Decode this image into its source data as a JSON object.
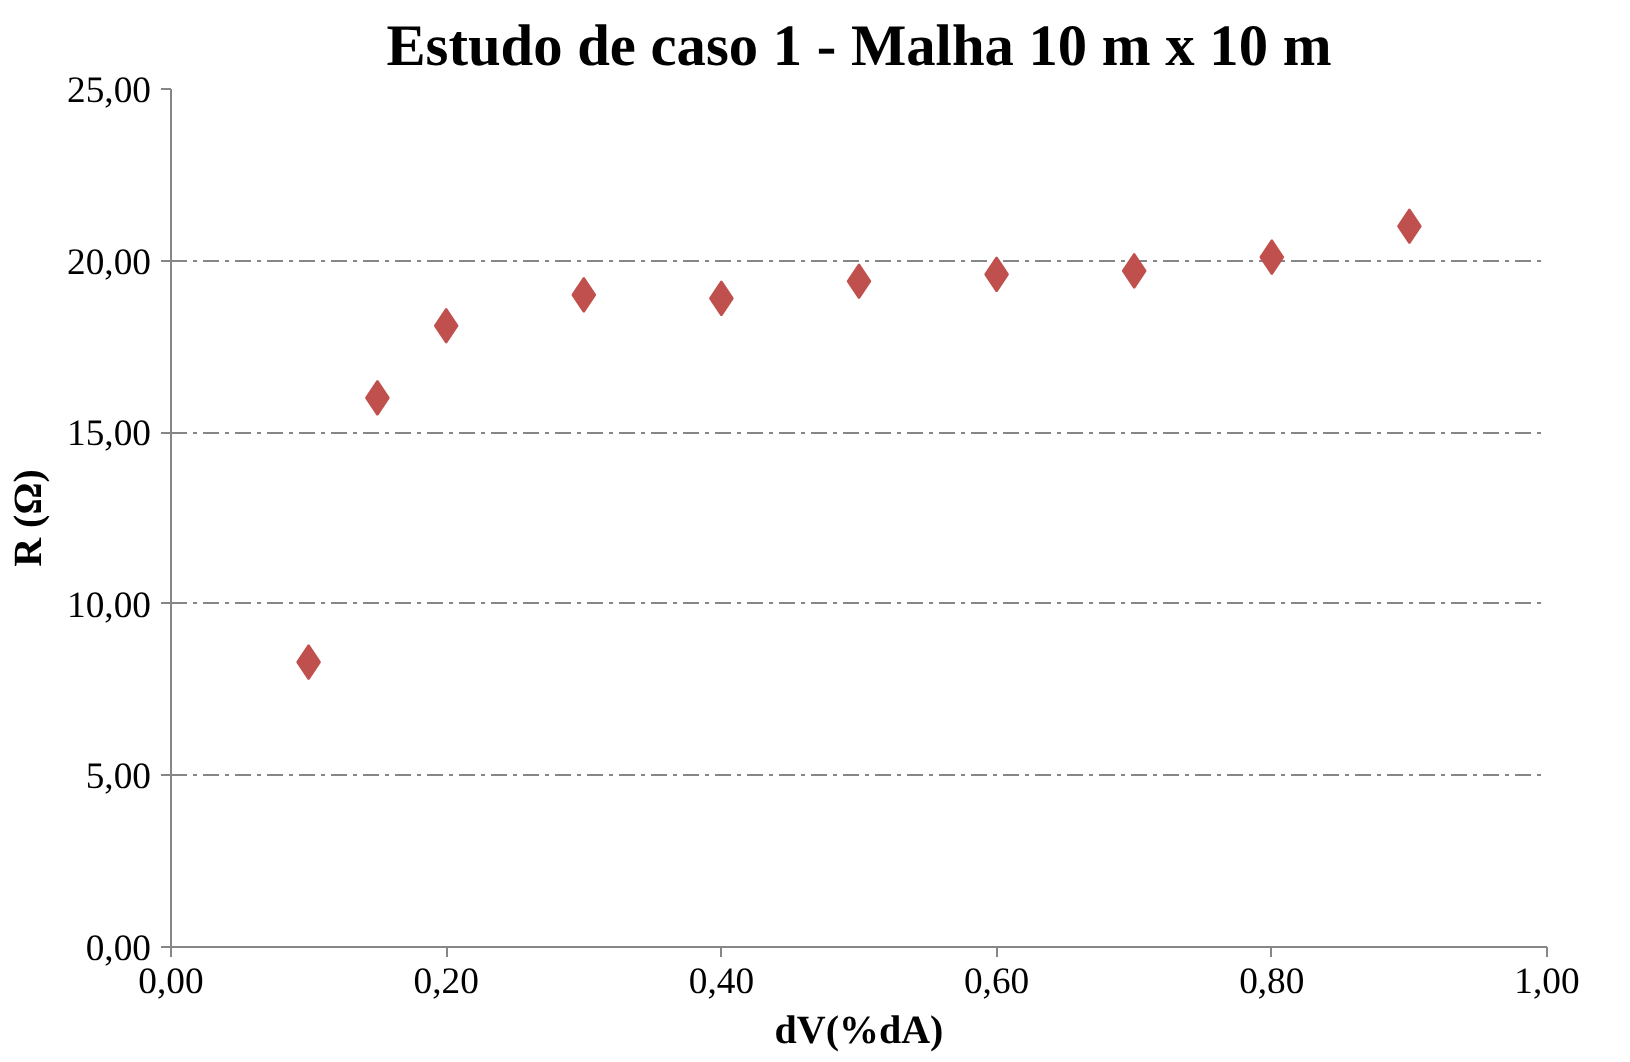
{
  "chart_data": {
    "type": "scatter",
    "title": "Estudo de caso 1 - Malha 10 m x 10 m",
    "xlabel": "dV(%dA)",
    "ylabel": "R (Ω)",
    "x": [
      0.1,
      0.15,
      0.2,
      0.3,
      0.4,
      0.5,
      0.6,
      0.7,
      0.8,
      0.9
    ],
    "series": [
      {
        "color": "#c0504d",
        "values": [
          8.3,
          16.0,
          18.1,
          19.0,
          18.9,
          19.4,
          19.6,
          19.7,
          20.1,
          21.0
        ]
      }
    ],
    "xlim": [
      0,
      1
    ],
    "ylim": [
      0,
      25
    ],
    "xticks": [
      {
        "value": 0,
        "label": "0,00"
      },
      {
        "value": 0.2,
        "label": "0,20"
      },
      {
        "value": 0.4,
        "label": "0,40"
      },
      {
        "value": 0.6,
        "label": "0,60"
      },
      {
        "value": 0.8,
        "label": "0,80"
      },
      {
        "value": 1,
        "label": "1,00"
      }
    ],
    "yticks": [
      {
        "value": 0,
        "label": "0,00"
      },
      {
        "value": 5,
        "label": "5,00"
      },
      {
        "value": 10,
        "label": "10,00"
      },
      {
        "value": 15,
        "label": "15,00"
      },
      {
        "value": 20,
        "label": "20,00"
      },
      {
        "value": 25,
        "label": "25,00"
      }
    ],
    "grid": "y",
    "marker": "diamond"
  }
}
